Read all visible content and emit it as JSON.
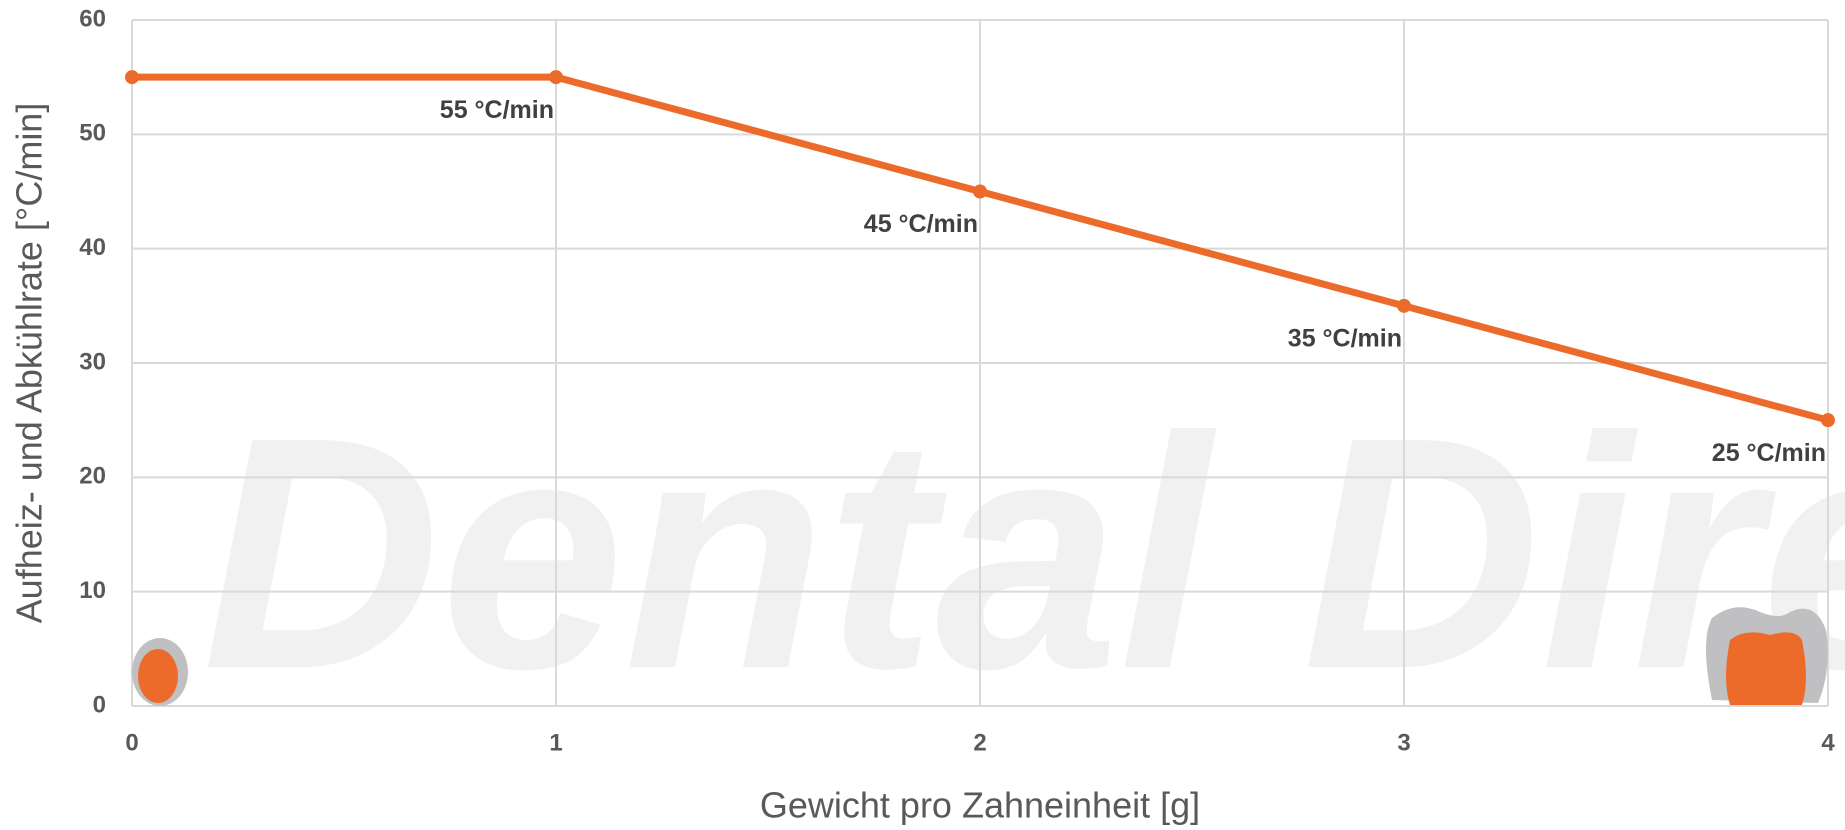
{
  "chart_data": {
    "type": "line",
    "watermark": "Dental Direkt",
    "x": [
      0,
      1,
      2,
      3,
      4
    ],
    "series": [
      {
        "name": "Aufheiz- und Abkühlrate",
        "color": "#ec6b2a",
        "values": [
          55,
          55,
          45,
          35,
          25
        ],
        "value_labels": [
          null,
          "55 °C/min",
          "45 °C/min",
          "35 °C/min",
          "25 °C/min"
        ]
      }
    ],
    "xlabel": "Gewicht pro Zahneinheit [g]",
    "ylabel": "Aufheiz- und Abkühlrate [°C/min]",
    "xlim": [
      0,
      4
    ],
    "xticks": [
      0,
      1,
      2,
      3,
      4
    ],
    "ylim": [
      0,
      60
    ],
    "yticks": [
      0,
      10,
      20,
      30,
      40,
      50,
      60
    ],
    "grid": true
  }
}
